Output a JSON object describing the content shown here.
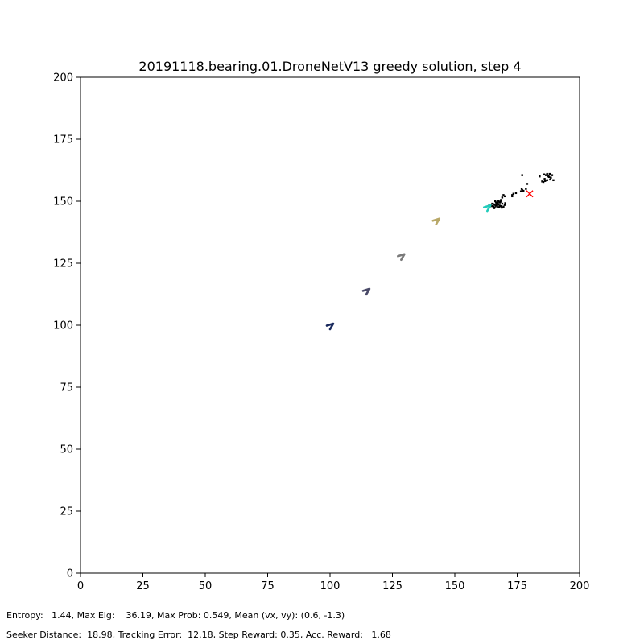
{
  "chart_data": {
    "type": "scatter",
    "title": "20191118.bearing.01.DroneNetV13 greedy solution, step 4",
    "xlabel": "",
    "ylabel": "",
    "xlim": [
      0,
      200
    ],
    "ylim": [
      0,
      200
    ],
    "grid": false,
    "xticks": [
      "0",
      "25",
      "50",
      "75",
      "100",
      "125",
      "150",
      "175",
      "200"
    ],
    "yticks": [
      "0",
      "25",
      "50",
      "75",
      "100",
      "125",
      "150",
      "175",
      "200"
    ],
    "seeker_path": [
      {
        "x": 100,
        "y": 99.5,
        "color": "#1a2a5e"
      },
      {
        "x": 114.5,
        "y": 113.5,
        "color": "#4a4a68"
      },
      {
        "x": 128.5,
        "y": 127.5,
        "color": "#7a7a7a"
      },
      {
        "x": 142.5,
        "y": 141.8,
        "color": "#b8a868"
      },
      {
        "x": 163,
        "y": 147.2,
        "color": "#22ccbb"
      }
    ],
    "target": {
      "x": 180,
      "y": 153,
      "marker": "x",
      "color": "#ff0000"
    },
    "particles": [
      [
        164,
        147.5
      ],
      [
        165,
        148
      ],
      [
        166,
        148.5
      ],
      [
        167,
        149
      ],
      [
        165.5,
        147.8
      ],
      [
        166.5,
        148.2
      ],
      [
        167.5,
        148.6
      ],
      [
        168,
        149.5
      ],
      [
        169,
        149
      ],
      [
        170,
        148.5
      ],
      [
        168.5,
        148
      ],
      [
        169.5,
        147.8
      ],
      [
        166,
        147.5
      ],
      [
        167,
        147.8
      ],
      [
        168,
        148.2
      ],
      [
        164.5,
        148.2
      ],
      [
        165,
        149
      ],
      [
        166.5,
        149.5
      ],
      [
        167.5,
        150
      ],
      [
        168.5,
        150.5
      ],
      [
        169,
        151.5
      ],
      [
        170,
        152
      ],
      [
        169.5,
        152.5
      ],
      [
        165.5,
        148.8
      ],
      [
        166.8,
        148.9
      ],
      [
        167.8,
        147.6
      ],
      [
        168.8,
        147.4
      ],
      [
        170.2,
        149.2
      ],
      [
        163.8,
        148.3
      ],
      [
        166.2,
        150
      ],
      [
        167.2,
        149.3
      ],
      [
        168.3,
        149.8
      ],
      [
        165.8,
        147.2
      ],
      [
        173,
        152.5
      ],
      [
        173.5,
        153
      ],
      [
        173,
        152
      ],
      [
        174.5,
        153.3
      ],
      [
        176.5,
        154
      ],
      [
        177,
        154.5
      ],
      [
        177.5,
        154.2
      ],
      [
        178.5,
        155
      ],
      [
        176.8,
        155
      ],
      [
        179,
        157
      ],
      [
        177,
        160.5
      ],
      [
        184,
        160
      ],
      [
        185,
        158
      ],
      [
        185.5,
        157.8
      ],
      [
        186,
        159
      ],
      [
        186.5,
        160.5
      ],
      [
        187,
        161
      ],
      [
        187.5,
        160
      ],
      [
        188,
        161
      ],
      [
        188.5,
        159.5
      ],
      [
        189,
        160.5
      ],
      [
        187,
        158.5
      ],
      [
        189.5,
        158.5
      ],
      [
        186.2,
        158.2
      ],
      [
        188.2,
        158.8
      ],
      [
        187.8,
        159.8
      ],
      [
        185.8,
        160.8
      ]
    ],
    "colors": {
      "seeker_latest": "#22ccbb",
      "target": "#ff0000",
      "particles": "#000000"
    }
  },
  "footer": {
    "line1": "Entropy:   1.44, Max Eig:    36.19, Max Prob: 0.549, Mean (vx, vy): (0.6, -1.3)",
    "line2": "Seeker Distance:  18.98, Tracking Error:  12.18, Step Reward: 0.35, Acc. Reward:   1.68"
  }
}
